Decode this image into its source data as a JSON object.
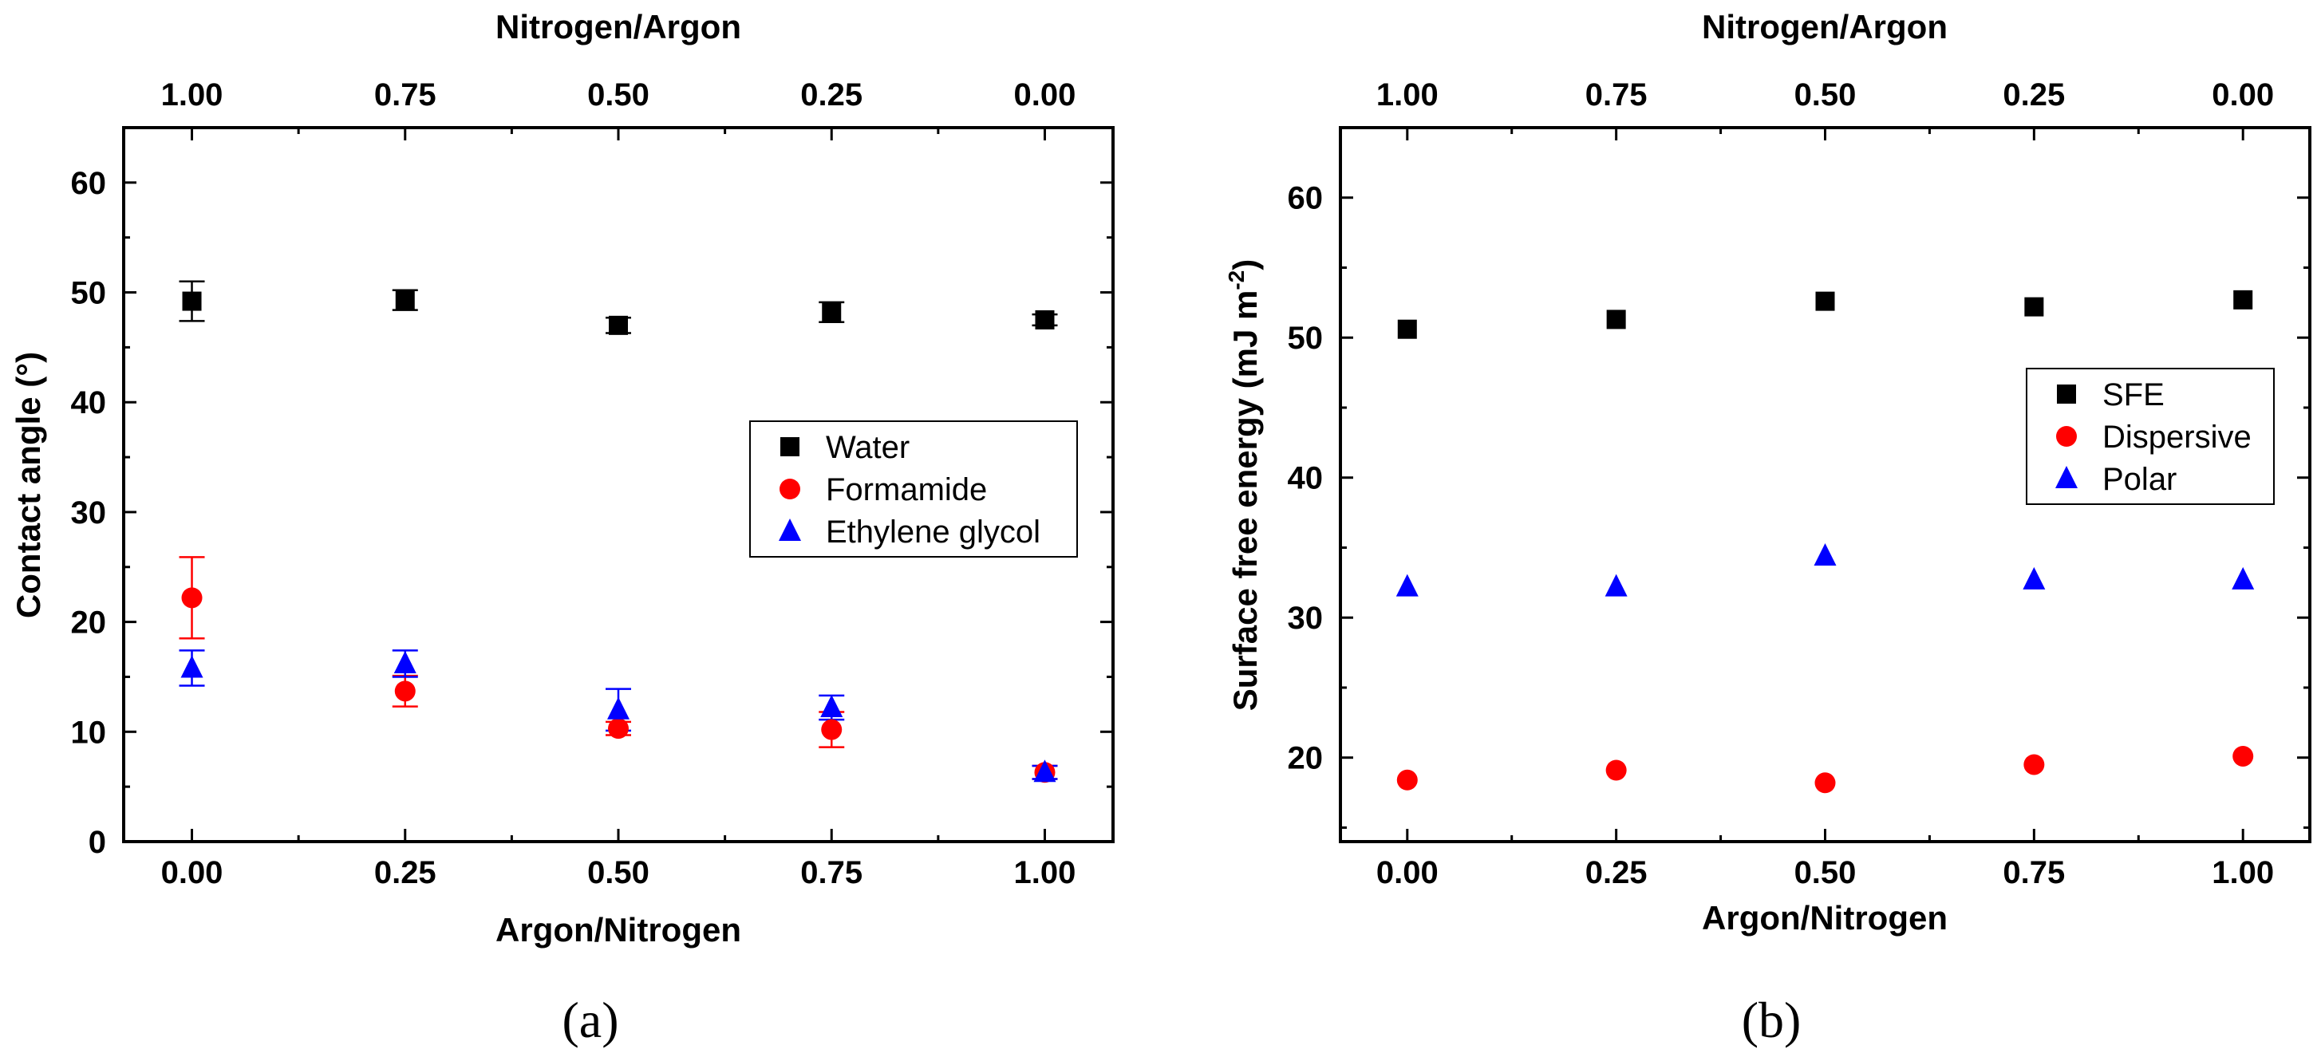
{
  "chart_data": [
    {
      "type": "scatter",
      "panel_label": "(a)",
      "xlabel": "Argon/Nitrogen",
      "ylabel": "Contact angle (°)",
      "top_xlabel": "Nitrogen/Argon",
      "x": [
        0,
        0.25,
        0.5,
        0.75,
        1.0
      ],
      "x_tick_labels": [
        "0.00",
        "0.25",
        "0.50",
        "0.75",
        "1.00"
      ],
      "top_tick_labels": [
        "1.00",
        "0.75",
        "0.50",
        "0.25",
        "0.00"
      ],
      "xlim": [
        -0.08,
        1.08
      ],
      "ylim": [
        0,
        65
      ],
      "y_ticks": [
        0,
        10,
        20,
        30,
        40,
        50,
        60
      ],
      "y_tick_labels": [
        "0",
        "10",
        "20",
        "30",
        "40",
        "50",
        "60"
      ],
      "legend_position": "center-right",
      "series": [
        {
          "name": "Water",
          "marker": "square",
          "color": "#000000",
          "values": [
            49.2,
            49.3,
            47.0,
            48.2,
            47.5
          ],
          "errors": [
            1.8,
            0.9,
            0.7,
            0.9,
            0.5
          ]
        },
        {
          "name": "Formamide",
          "marker": "circle",
          "color": "#ff0000",
          "values": [
            22.2,
            13.7,
            10.3,
            10.2,
            6.3
          ],
          "errors": [
            3.7,
            1.4,
            0.6,
            1.6,
            0.6
          ]
        },
        {
          "name": "Ethylene glycol",
          "marker": "triangle",
          "color": "#0000ff",
          "values": [
            15.8,
            16.2,
            12.0,
            12.2,
            6.3
          ],
          "errors": [
            1.6,
            1.2,
            1.9,
            1.1,
            0.6
          ]
        }
      ]
    },
    {
      "type": "scatter",
      "panel_label": "(b)",
      "xlabel": "Argon/Nitrogen",
      "ylabel_main": "Surface free energy (mJ m",
      "ylabel_sup": "-2",
      "ylabel_end": ")",
      "top_xlabel": "Nitrogen/Argon",
      "x": [
        0,
        0.25,
        0.5,
        0.75,
        1.0
      ],
      "x_tick_labels": [
        "0.00",
        "0.25",
        "0.50",
        "0.75",
        "1.00"
      ],
      "top_tick_labels": [
        "1.00",
        "0.75",
        "0.50",
        "0.25",
        "0.00"
      ],
      "xlim": [
        -0.08,
        1.08
      ],
      "ylim": [
        14,
        65
      ],
      "y_ticks": [
        20,
        30,
        40,
        50,
        60
      ],
      "y_tick_labels": [
        "20",
        "30",
        "40",
        "50",
        "60"
      ],
      "legend_position": "center-right",
      "series": [
        {
          "name": "SFE",
          "marker": "square",
          "color": "#000000",
          "values": [
            50.6,
            51.3,
            52.6,
            52.2,
            52.7
          ]
        },
        {
          "name": "Dispersive",
          "marker": "circle",
          "color": "#ff0000",
          "values": [
            18.4,
            19.1,
            18.2,
            19.5,
            20.1
          ]
        },
        {
          "name": "Polar",
          "marker": "triangle",
          "color": "#0000ff",
          "values": [
            32.2,
            32.2,
            34.4,
            32.7,
            32.7
          ]
        }
      ]
    }
  ]
}
